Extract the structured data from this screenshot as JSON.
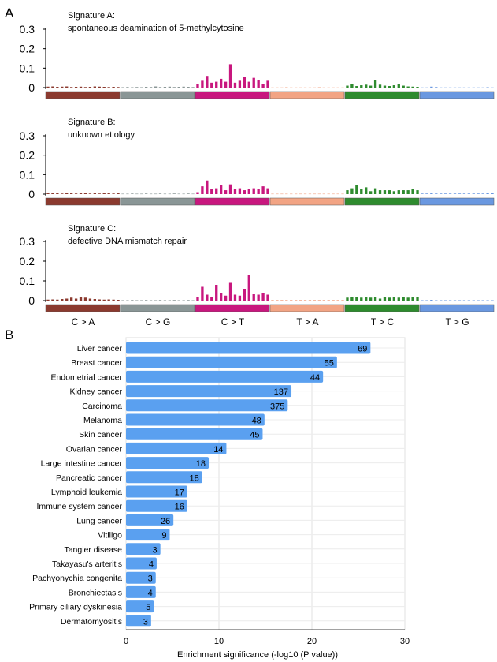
{
  "panel_a_label": "A",
  "panel_b_label": "B",
  "chart_data": [
    {
      "type": "bar",
      "panel": "A",
      "ylim": [
        0,
        0.3
      ],
      "yticks": [
        0,
        0.1,
        0.2,
        0.3
      ],
      "ytick_labels": [
        "0",
        "0.1",
        "0.2",
        "0.3"
      ],
      "mutation_classes": [
        {
          "label": "C > A",
          "color": "#8b3a2f"
        },
        {
          "label": "C > G",
          "color": "#8a9696"
        },
        {
          "label": "C > T",
          "color": "#c8177e"
        },
        {
          "label": "T > A",
          "color": "#f2a484"
        },
        {
          "label": "T > C",
          "color": "#2e8b2e"
        },
        {
          "label": "T > G",
          "color": "#6a98e0"
        }
      ],
      "signatures": [
        {
          "title": "Signature A:",
          "subtitle": "spontaneous deamination of 5-methylcytosine",
          "values": [
            0.005,
            0.006,
            0.004,
            0.005,
            0.006,
            0.003,
            0.004,
            0.005,
            0.003,
            0.004,
            0.006,
            0.005,
            0.004,
            0.003,
            0.004,
            0.003,
            0.002,
            0.003,
            0.002,
            0.003,
            0.002,
            0.004,
            0.003,
            0.006,
            0.003,
            0.004,
            0.005,
            0.003,
            0.004,
            0.005,
            0.004,
            0.003,
            0.02,
            0.035,
            0.06,
            0.025,
            0.03,
            0.045,
            0.03,
            0.12,
            0.025,
            0.035,
            0.055,
            0.03,
            0.05,
            0.04,
            0.02,
            0.035,
            0.001,
            0.001,
            0.001,
            0.002,
            0.001,
            0.001,
            0.001,
            0.001,
            0.001,
            0.001,
            0.002,
            0.001,
            0.001,
            0.001,
            0.001,
            0.001,
            0.01,
            0.02,
            0.008,
            0.012,
            0.015,
            0.01,
            0.04,
            0.015,
            0.01,
            0.008,
            0.012,
            0.02,
            0.01,
            0.006,
            0.005,
            0.004,
            0.001,
            0.001,
            0.005,
            0.003,
            0.001,
            0.001,
            0.001,
            0.001,
            0.001,
            0.001,
            0.001,
            0.001,
            0.001,
            0.001,
            0.002,
            0.001
          ]
        },
        {
          "title": "Signature B:",
          "subtitle": "unknown etiology",
          "values": [
            0.004,
            0.005,
            0.004,
            0.003,
            0.005,
            0.004,
            0.003,
            0.004,
            0.005,
            0.003,
            0.004,
            0.003,
            0.004,
            0.005,
            0.003,
            0.004,
            0.002,
            0.002,
            0.003,
            0.002,
            0.002,
            0.003,
            0.002,
            0.002,
            0.003,
            0.002,
            0.002,
            0.003,
            0.002,
            0.002,
            0.003,
            0.002,
            0.01,
            0.04,
            0.07,
            0.025,
            0.03,
            0.045,
            0.02,
            0.05,
            0.025,
            0.03,
            0.02,
            0.025,
            0.03,
            0.025,
            0.04,
            0.03,
            0.002,
            0.002,
            0.002,
            0.002,
            0.002,
            0.002,
            0.002,
            0.002,
            0.002,
            0.002,
            0.002,
            0.002,
            0.002,
            0.002,
            0.002,
            0.002,
            0.02,
            0.03,
            0.045,
            0.025,
            0.035,
            0.015,
            0.03,
            0.02,
            0.02,
            0.02,
            0.015,
            0.02,
            0.02,
            0.02,
            0.025,
            0.02,
            0.003,
            0.003,
            0.005,
            0.003,
            0.003,
            0.003,
            0.003,
            0.003,
            0.003,
            0.003,
            0.003,
            0.003,
            0.003,
            0.003,
            0.004,
            0.005
          ]
        },
        {
          "title": "Signature C:",
          "subtitle": "defective DNA mismatch repair",
          "values": [
            0.005,
            0.006,
            0.005,
            0.008,
            0.01,
            0.015,
            0.01,
            0.02,
            0.015,
            0.01,
            0.008,
            0.006,
            0.005,
            0.006,
            0.005,
            0.004,
            0.002,
            0.002,
            0.003,
            0.002,
            0.002,
            0.003,
            0.002,
            0.002,
            0.003,
            0.002,
            0.002,
            0.003,
            0.002,
            0.002,
            0.003,
            0.002,
            0.02,
            0.07,
            0.03,
            0.02,
            0.08,
            0.04,
            0.025,
            0.09,
            0.03,
            0.025,
            0.06,
            0.13,
            0.035,
            0.03,
            0.04,
            0.03,
            0.003,
            0.003,
            0.003,
            0.003,
            0.003,
            0.003,
            0.003,
            0.003,
            0.003,
            0.003,
            0.003,
            0.003,
            0.003,
            0.003,
            0.003,
            0.003,
            0.015,
            0.02,
            0.02,
            0.015,
            0.02,
            0.015,
            0.02,
            0.01,
            0.02,
            0.015,
            0.02,
            0.015,
            0.02,
            0.015,
            0.02,
            0.02,
            0.002,
            0.002,
            0.004,
            0.002,
            0.002,
            0.002,
            0.002,
            0.002,
            0.002,
            0.002,
            0.002,
            0.002,
            0.002,
            0.002,
            0.002,
            0.002
          ]
        }
      ]
    },
    {
      "type": "bar",
      "orientation": "horizontal",
      "panel": "B",
      "categories": [
        "Liver cancer",
        "Breast cancer",
        "Endometrial cancer",
        "Kidney cancer",
        "Carcinoma",
        "Melanoma",
        "Skin cancer",
        "Ovarian cancer",
        "Large intestine cancer",
        "Pancreatic cancer",
        "Lymphoid leukemia",
        "Immune system cancer",
        "Lung cancer",
        "Vitiligo",
        "Tangier disease",
        "Takayasu's arteritis",
        "Pachyonychia congenita",
        "Bronchiectasis",
        "Primary ciliary dyskinesia",
        "Dermatomyositis"
      ],
      "values": [
        26.3,
        22.7,
        21.2,
        17.8,
        17.4,
        14.9,
        14.7,
        10.8,
        8.9,
        8.2,
        6.6,
        6.6,
        5.1,
        4.7,
        3.7,
        3.3,
        3.2,
        3.2,
        3.0,
        2.7
      ],
      "bar_labels": [
        "69",
        "55",
        "44",
        "137",
        "375",
        "48",
        "45",
        "14",
        "18",
        "18",
        "17",
        "16",
        "26",
        "9",
        "3",
        "4",
        "3",
        "4",
        "5",
        "3"
      ],
      "xlabel": "Enrichment significance (-log10 (P value))",
      "xlim": [
        0,
        30
      ],
      "xticks": [
        0,
        10,
        20,
        30
      ],
      "xtick_labels": [
        "0",
        "10",
        "20",
        "30"
      ],
      "grid": true,
      "bar_color": "#5aa0f0"
    }
  ]
}
